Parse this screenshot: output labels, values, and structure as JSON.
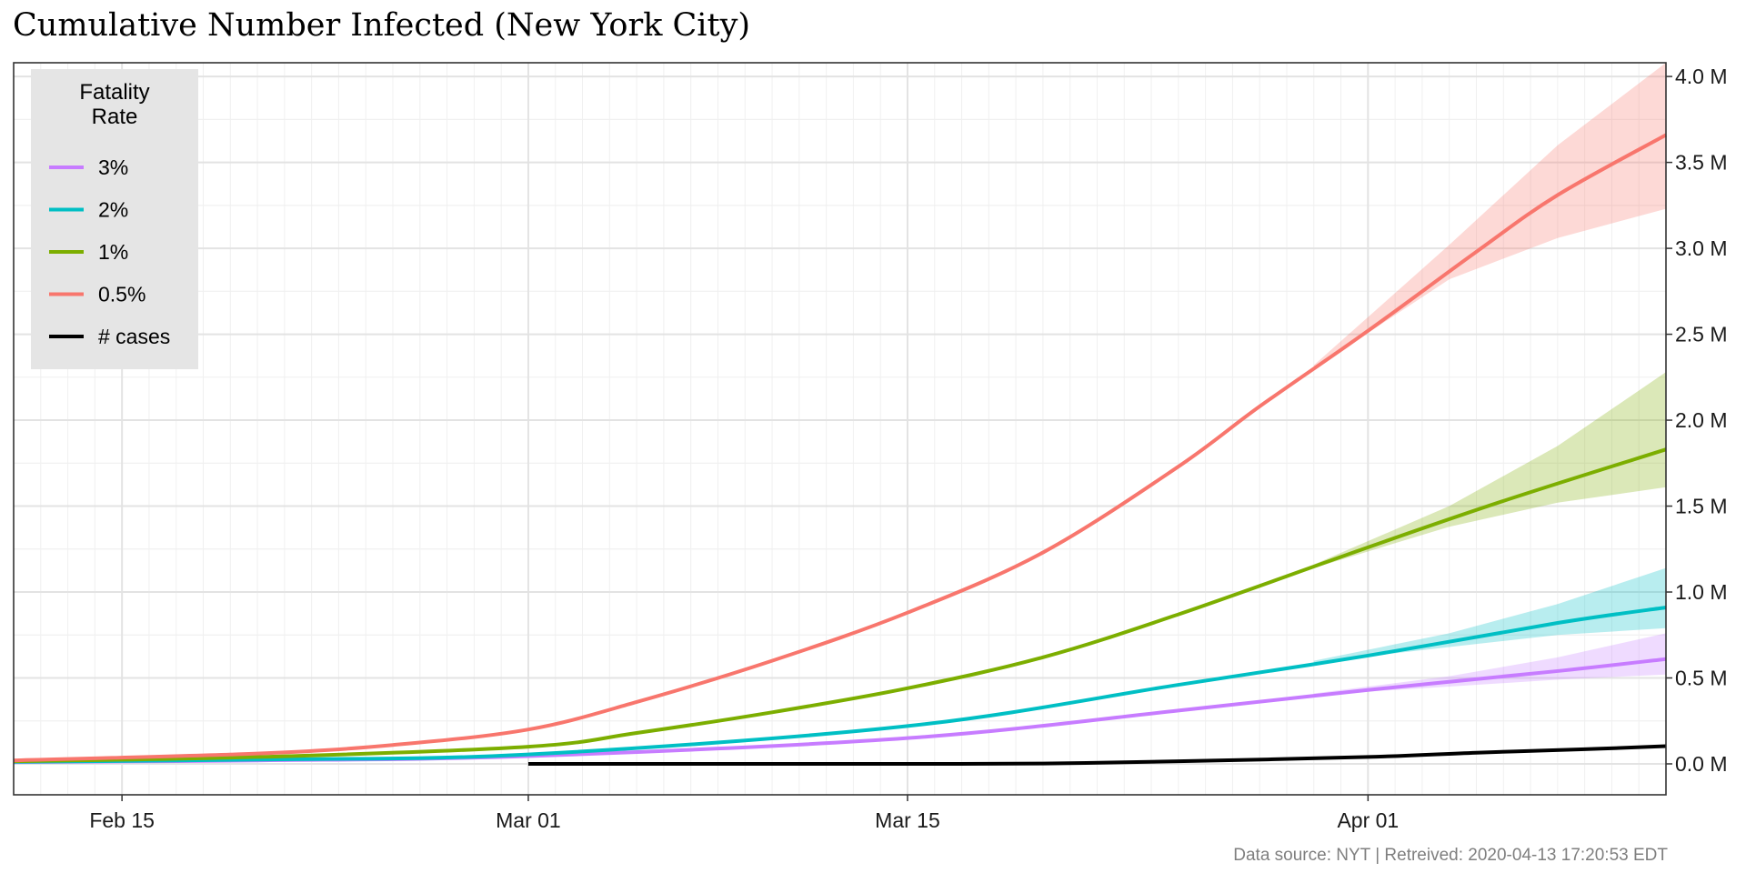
{
  "chart_data": {
    "type": "line",
    "title": "Cumulative Number Infected (New York City)",
    "xlabel": "",
    "ylabel": "",
    "x_range": [
      "2020-02-11",
      "2020-04-12"
    ],
    "x_ticks": [
      {
        "date": "2020-02-15",
        "label": "Feb 15"
      },
      {
        "date": "2020-03-01",
        "label": "Mar 01"
      },
      {
        "date": "2020-03-15",
        "label": "Mar 15"
      },
      {
        "date": "2020-04-01",
        "label": "Apr 01"
      }
    ],
    "ylim": [
      -180000,
      4080000
    ],
    "y_ticks": [
      {
        "value": 0,
        "label": "0.0 M"
      },
      {
        "value": 500000,
        "label": "0.5 M"
      },
      {
        "value": 1000000,
        "label": "1.0 M"
      },
      {
        "value": 1500000,
        "label": "1.5 M"
      },
      {
        "value": 2000000,
        "label": "2.0 M"
      },
      {
        "value": 2500000,
        "label": "2.5 M"
      },
      {
        "value": 3000000,
        "label": "3.0 M"
      },
      {
        "value": 3500000,
        "label": "3.5 M"
      },
      {
        "value": 4000000,
        "label": "4.0 M"
      }
    ],
    "y_axis_position": "right",
    "grid": true,
    "legend": {
      "title_lines": [
        "Fatality",
        "Rate"
      ],
      "position": "top-left-inside"
    },
    "series": [
      {
        "name": "3%",
        "color": "#C77CFF",
        "dates": [
          "2020-02-11",
          "2020-02-20",
          "2020-03-01",
          "2020-03-15",
          "2020-03-25",
          "2020-04-01",
          "2020-04-08",
          "2020-04-12"
        ],
        "values": [
          10000,
          20000,
          45000,
          150000,
          310000,
          430000,
          540000,
          610000
        ],
        "band_dates": [
          "2020-03-30",
          "2020-04-04",
          "2020-04-08",
          "2020-04-12"
        ],
        "band_lower": [
          400000,
          450000,
          490000,
          520000
        ],
        "band_upper": [
          410000,
          510000,
          620000,
          760000
        ]
      },
      {
        "name": "2%",
        "color": "#00BFC4",
        "dates": [
          "2020-02-11",
          "2020-02-20",
          "2020-03-01",
          "2020-03-15",
          "2020-03-25",
          "2020-04-01",
          "2020-04-08",
          "2020-04-12"
        ],
        "values": [
          12000,
          25000,
          55000,
          220000,
          460000,
          630000,
          820000,
          910000
        ],
        "band_dates": [
          "2020-03-30",
          "2020-04-04",
          "2020-04-08",
          "2020-04-12"
        ],
        "band_lower": [
          590000,
          680000,
          750000,
          790000
        ],
        "band_upper": [
          600000,
          760000,
          930000,
          1140000
        ]
      },
      {
        "name": "1%",
        "color": "#7CAE00",
        "dates": [
          "2020-02-11",
          "2020-02-20",
          "2020-03-01",
          "2020-03-05",
          "2020-03-10",
          "2020-03-15",
          "2020-03-20",
          "2020-03-25",
          "2020-04-01",
          "2020-04-06",
          "2020-04-12"
        ],
        "values": [
          15000,
          40000,
          100000,
          180000,
          300000,
          440000,
          620000,
          870000,
          1260000,
          1530000,
          1830000
        ],
        "band_dates": [
          "2020-03-30",
          "2020-04-04",
          "2020-04-08",
          "2020-04-12"
        ],
        "band_lower": [
          1140000,
          1380000,
          1520000,
          1610000
        ],
        "band_upper": [
          1160000,
          1500000,
          1850000,
          2280000
        ]
      },
      {
        "name": "0.5%",
        "color": "#F8766D",
        "dates": [
          "2020-02-11",
          "2020-02-20",
          "2020-02-25",
          "2020-03-01",
          "2020-03-05",
          "2020-03-10",
          "2020-03-15",
          "2020-03-20",
          "2020-03-25",
          "2020-03-28",
          "2020-04-01",
          "2020-04-05",
          "2020-04-08",
          "2020-04-12"
        ],
        "values": [
          20000,
          60000,
          110000,
          200000,
          360000,
          600000,
          880000,
          1230000,
          1730000,
          2080000,
          2520000,
          2980000,
          3310000,
          3660000
        ],
        "band_dates": [
          "2020-03-30",
          "2020-04-04",
          "2020-04-08",
          "2020-04-12"
        ],
        "band_lower": [
          2300000,
          2820000,
          3060000,
          3230000
        ],
        "band_upper": [
          2320000,
          3020000,
          3600000,
          4080000
        ]
      },
      {
        "name": "# cases",
        "color": "#000000",
        "dates": [
          "2020-03-01",
          "2020-03-10",
          "2020-03-15",
          "2020-03-20",
          "2020-03-25",
          "2020-04-01",
          "2020-04-05",
          "2020-04-09",
          "2020-04-12"
        ],
        "values": [
          0,
          0,
          0,
          2000,
          15000,
          40000,
          65000,
          85000,
          103000
        ]
      }
    ],
    "legend_order": [
      "3%",
      "2%",
      "1%",
      "0.5%",
      "# cases"
    ]
  },
  "caption": "Data source: NYT  |  Retreived: 2020-04-13 17:20:53 EDT"
}
